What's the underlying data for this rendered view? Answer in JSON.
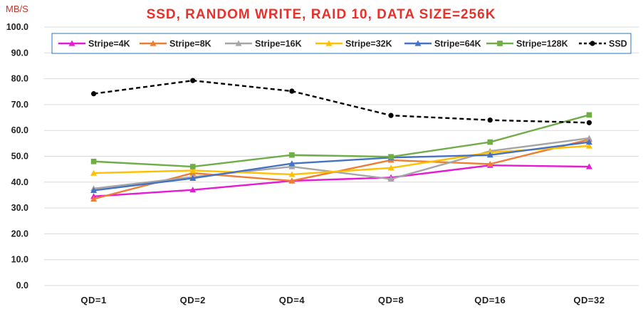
{
  "chart_data": {
    "type": "line",
    "title": "SSD, RANDOM WRITE, RAID 10, DATA SIZE=256K",
    "ylabel": "MB/S",
    "xlabel": "",
    "categories": [
      "QD=1",
      "QD=2",
      "QD=4",
      "QD=8",
      "QD=16",
      "QD=32"
    ],
    "ylim": [
      0,
      100
    ],
    "yticks": [
      "0.0",
      "10.0",
      "20.0",
      "30.0",
      "40.0",
      "50.0",
      "60.0",
      "70.0",
      "80.0",
      "90.0",
      "100.0"
    ],
    "grid": "horizontal",
    "legend_position": "top",
    "series": [
      {
        "name": "Stripe=4K",
        "color": "#e619d4",
        "marker": "triangle",
        "dash": false,
        "values": [
          34.5,
          37.0,
          40.5,
          41.8,
          46.5,
          46.0
        ]
      },
      {
        "name": "Stripe=8K",
        "color": "#ed7d31",
        "marker": "triangle",
        "dash": false,
        "values": [
          33.5,
          43.5,
          40.5,
          48.5,
          47.0,
          56.5
        ]
      },
      {
        "name": "Stripe=16K",
        "color": "#a5a5a5",
        "marker": "triangle",
        "dash": false,
        "values": [
          37.5,
          42.0,
          46.0,
          41.2,
          52.0,
          57.0
        ]
      },
      {
        "name": "Stripe=32K",
        "color": "#ffc000",
        "marker": "triangle",
        "dash": false,
        "values": [
          43.5,
          44.5,
          43.0,
          45.5,
          51.5,
          54.0
        ]
      },
      {
        "name": "Stripe=64K",
        "color": "#4472c4",
        "marker": "triangle",
        "dash": false,
        "values": [
          36.8,
          41.5,
          47.2,
          49.5,
          50.5,
          55.5
        ]
      },
      {
        "name": "Stripe=128K",
        "color": "#70ad47",
        "marker": "square",
        "dash": false,
        "values": [
          48.0,
          46.0,
          50.5,
          49.8,
          55.5,
          66.0
        ]
      },
      {
        "name": "SSD",
        "color": "#000000",
        "marker": "circle",
        "dash": true,
        "values": [
          74.2,
          79.3,
          75.2,
          65.8,
          64.0,
          63.0
        ]
      }
    ]
  }
}
